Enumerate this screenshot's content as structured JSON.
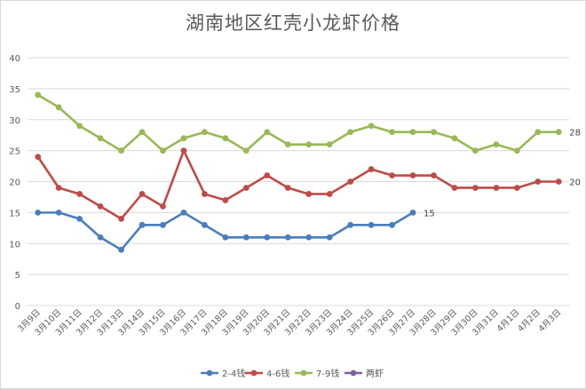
{
  "chart_data": {
    "type": "line",
    "title": "湖南地区红壳小龙虾价格",
    "xlabel": "",
    "ylabel": "",
    "ylim": [
      0,
      40
    ],
    "yticks": [
      "0",
      "5",
      "10",
      "15",
      "20",
      "25",
      "30",
      "35",
      "40"
    ],
    "grid": "horizontal",
    "legend_position": "bottom",
    "categories": [
      "3月9日",
      "3月10日",
      "3月11日",
      "3月12日",
      "3月13日",
      "3月14日",
      "3月15日",
      "3月16日",
      "3月17日",
      "3月18日",
      "3月19日",
      "3月20日",
      "3月21日",
      "3月22日",
      "3月23日",
      "3月24日",
      "3月25日",
      "3月26日",
      "3月27日",
      "3月28日",
      "3月29日",
      "3月30日",
      "3月31日",
      "4月1日",
      "4月2日",
      "4月3日"
    ],
    "series": [
      {
        "name": "2-4钱",
        "color": "#4a7ebb",
        "values": [
          15,
          15,
          14,
          11,
          9,
          13,
          13,
          15,
          13,
          11,
          11,
          11,
          11,
          11,
          11,
          13,
          13,
          13,
          15,
          null,
          null,
          null,
          null,
          null,
          null,
          null
        ],
        "end_label": "15"
      },
      {
        "name": "4-6钱",
        "color": "#be4b48",
        "values": [
          24,
          19,
          18,
          16,
          14,
          18,
          16,
          25,
          18,
          17,
          19,
          21,
          19,
          18,
          18,
          20,
          22,
          21,
          21,
          21,
          19,
          19,
          19,
          19,
          20,
          20
        ],
        "end_label": "20"
      },
      {
        "name": "7-9钱",
        "color": "#98b954",
        "values": [
          34,
          32,
          29,
          27,
          25,
          28,
          25,
          27,
          28,
          27,
          25,
          28,
          26,
          26,
          26,
          28,
          29,
          28,
          28,
          28,
          27,
          25,
          26,
          25,
          28,
          28
        ],
        "end_label": "28"
      },
      {
        "name": "两虾",
        "color": "#7d60a0",
        "values": [
          null,
          null,
          null,
          null,
          null,
          null,
          null,
          null,
          null,
          null,
          null,
          null,
          null,
          null,
          null,
          null,
          null,
          null,
          null,
          null,
          null,
          null,
          null,
          null,
          null,
          null
        ],
        "end_label": ""
      }
    ]
  }
}
